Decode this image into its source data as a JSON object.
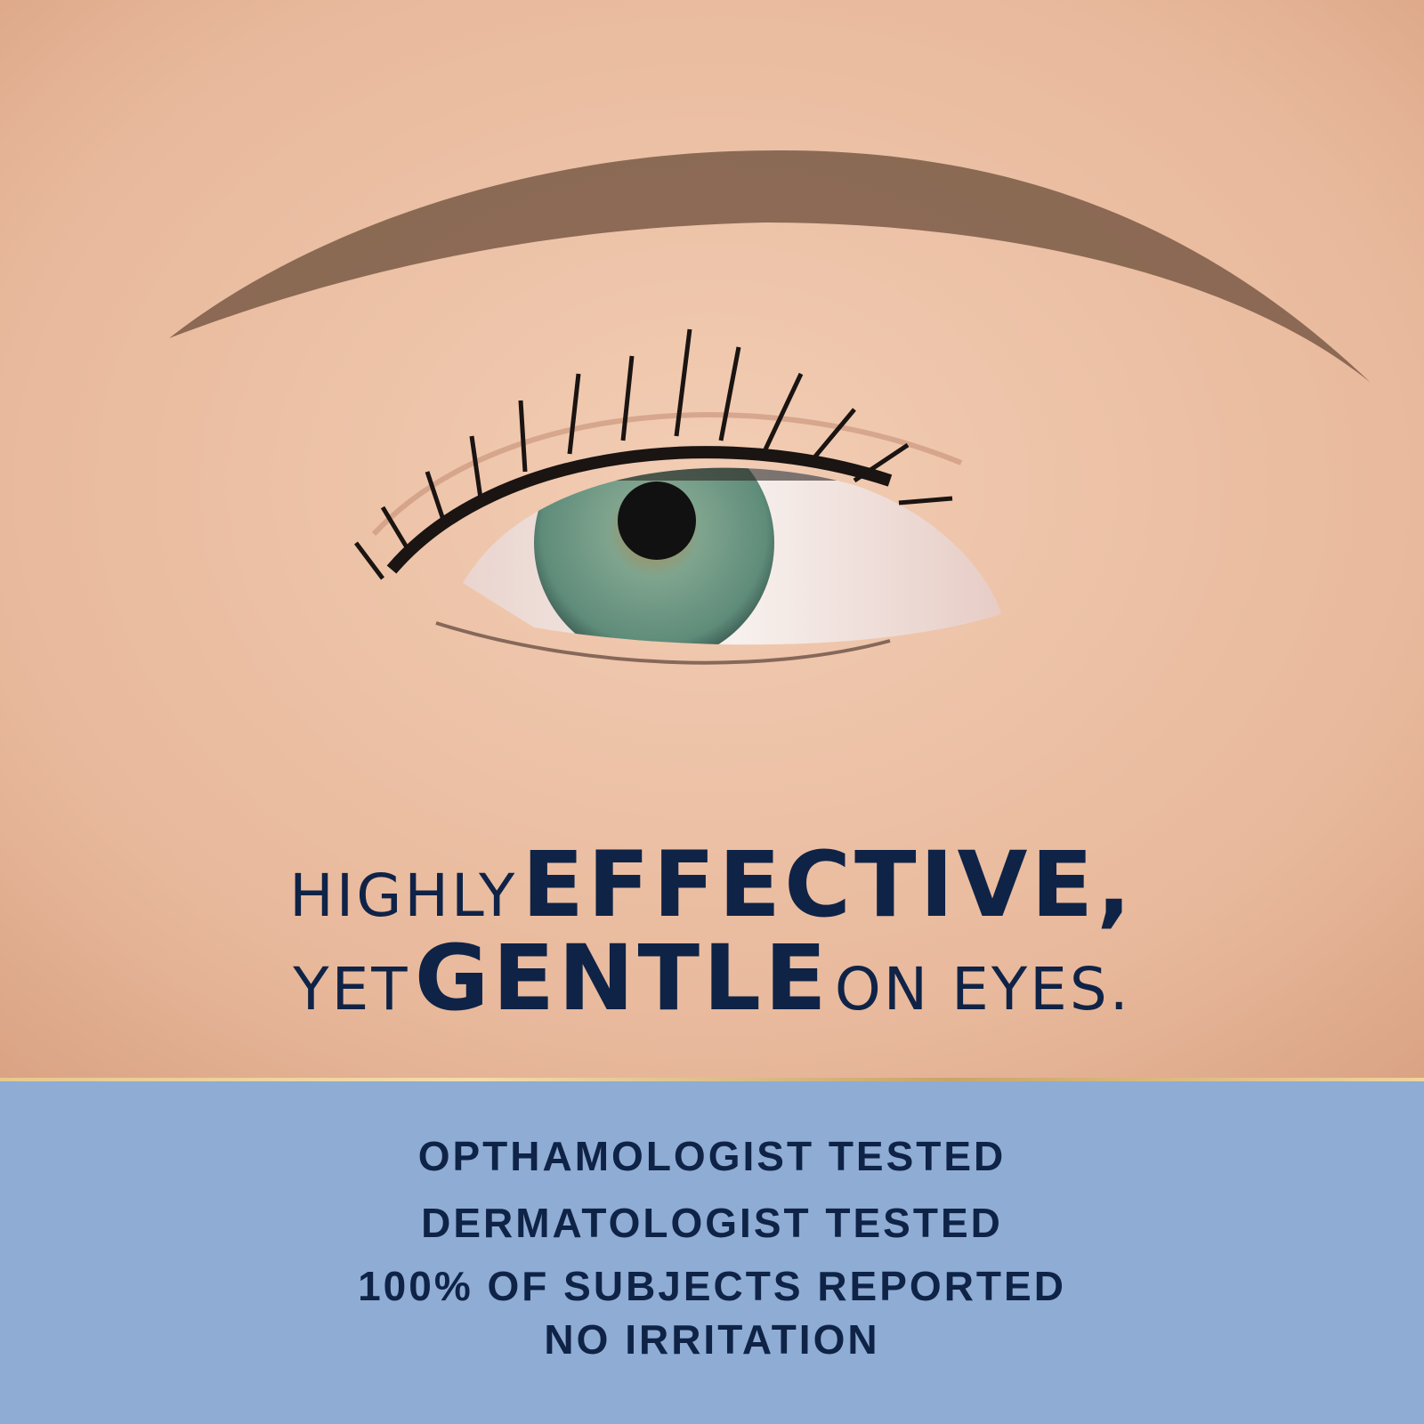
{
  "colors": {
    "navy": "#0f2347",
    "band": "#8eacd4",
    "skin": "#edc2a8",
    "gold": "#e6c98e",
    "iris": "#6f9a86"
  },
  "headline": {
    "line1": {
      "small": "HIGHLY",
      "large": "EFFECTIVE,"
    },
    "line2": {
      "small": "YET",
      "large": "GENTLE",
      "small2": "ON EYES."
    }
  },
  "claims": [
    "OPTHAMOLOGIST TESTED",
    "DERMATOLOGIST TESTED",
    "100% OF SUBJECTS REPORTED",
    "NO IRRITATION"
  ]
}
